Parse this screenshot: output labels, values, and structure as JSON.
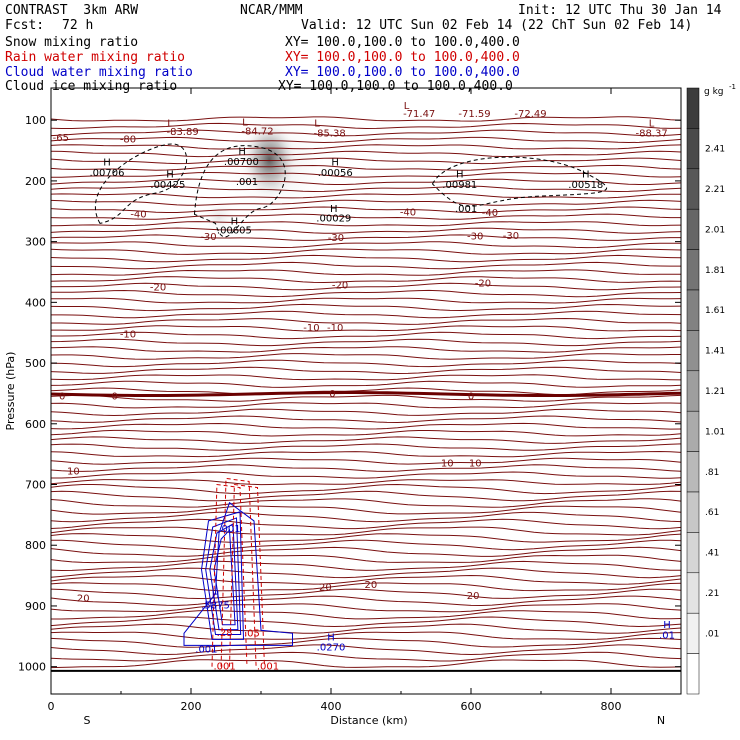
{
  "header": {
    "title": "CONTRAST  3km ARW",
    "org": "NCAR/MMM",
    "init": "Init: 12 UTC Thu 30 Jan 14",
    "fcst_label": "Fcst:",
    "fcst_value": "72 h",
    "valid": "Valid: 12 UTC Sun 02 Feb 14 (22 ChT Sun 02 Feb 14)"
  },
  "legend": [
    {
      "name": "Snow mixing ratio",
      "color": "#000000",
      "xy": "XY= 100.0,100.0 to 100.0,400.0"
    },
    {
      "name": "Rain water mixing ratio",
      "color": "#d00000",
      "xy": "XY= 100.0,100.0 to 100.0,400.0"
    },
    {
      "name": "Cloud water mixing ratio",
      "color": "#0000c8",
      "xy": "XY= 100.0,100.0 to 100.0,400.0"
    },
    {
      "name": "Cloud ice mixing ratio",
      "color": "#000000",
      "xy": "XY= 100.0,100.0 to 100.0,400.0"
    }
  ],
  "colors": {
    "temperature": "#7a1010",
    "zero_isotherm": "#6a0000",
    "rain": "#d00000",
    "cloud_water": "#0000c8",
    "snow": "#000000",
    "surface": "#000000"
  },
  "chart_data": {
    "type": "heatmap",
    "xlabel": "Distance (km)",
    "ylabel": "Pressure (hPa)",
    "xlim": [
      0,
      900
    ],
    "ylim": [
      1045,
      47
    ],
    "x_ticks": [
      "0",
      "200",
      "400",
      "600",
      "800"
    ],
    "y_ticks": [
      "100",
      "200",
      "300",
      "400",
      "500",
      "600",
      "700",
      "800",
      "900",
      "1000"
    ],
    "x_end_labels": {
      "left": "S",
      "right": "N"
    },
    "colorbar": {
      "unit": "g kg",
      "unit_exp": "-1",
      "ticks": [
        "2.41",
        "2.21",
        "2.01",
        "1.81",
        "1.61",
        "1.41",
        "1.21",
        "1.01",
        ".81",
        ".61",
        ".41",
        ".21",
        ".01"
      ]
    },
    "surface_pressure": 1007,
    "temperature_labels": [
      {
        "text": "-83.89",
        "x": 188,
        "p": 118
      },
      {
        "text": "-84.72",
        "x": 295,
        "p": 117
      },
      {
        "text": "-85.38",
        "x": 398,
        "p": 120
      },
      {
        "text": "-71.47",
        "x": 526,
        "p": 88
      },
      {
        "text": "-71.59",
        "x": 605,
        "p": 88
      },
      {
        "text": "-72.49",
        "x": 685,
        "p": 88
      },
      {
        "text": "-88.37",
        "x": 858,
        "p": 120
      },
      {
        "text": "-65",
        "x": 14,
        "p": 128
      },
      {
        "text": "-80",
        "x": 110,
        "p": 130
      },
      {
        "text": "-40",
        "x": 125,
        "p": 254
      },
      {
        "text": "-40",
        "x": 510,
        "p": 250
      },
      {
        "text": "-40",
        "x": 627,
        "p": 251
      },
      {
        "text": "-30",
        "x": 225,
        "p": 291
      },
      {
        "text": "-30",
        "x": 407,
        "p": 292
      },
      {
        "text": "-30",
        "x": 606,
        "p": 290
      },
      {
        "text": "-30",
        "x": 657,
        "p": 289
      },
      {
        "text": "-20",
        "x": 153,
        "p": 374
      },
      {
        "text": "-20",
        "x": 413,
        "p": 371
      },
      {
        "text": "-20",
        "x": 617,
        "p": 367
      },
      {
        "text": "-10",
        "x": 110,
        "p": 451
      },
      {
        "text": "-10",
        "x": 372,
        "p": 441
      },
      {
        "text": "-10",
        "x": 406,
        "p": 441
      },
      {
        "text": "0",
        "x": 16,
        "p": 553
      },
      {
        "text": "0",
        "x": 91,
        "p": 553
      },
      {
        "text": "0",
        "x": 402,
        "p": 549
      },
      {
        "text": "0",
        "x": 600,
        "p": 553
      },
      {
        "text": "10",
        "x": 32,
        "p": 677
      },
      {
        "text": "10",
        "x": 566,
        "p": 664
      },
      {
        "text": "10",
        "x": 606,
        "p": 664
      },
      {
        "text": "20",
        "x": 46,
        "p": 886
      },
      {
        "text": "20",
        "x": 392,
        "p": 868
      },
      {
        "text": "20",
        "x": 457,
        "p": 864
      },
      {
        "text": "20",
        "x": 603,
        "p": 882
      }
    ],
    "maxima": [
      {
        "text": ".00706",
        "x": 80,
        "p": 185,
        "color": "#000000"
      },
      {
        "text": ".00425",
        "x": 167,
        "p": 205,
        "color": "#000000"
      },
      {
        "text": ".00700",
        "x": 272,
        "p": 167,
        "color": "#000000"
      },
      {
        "text": ".00056",
        "x": 406,
        "p": 185,
        "color": "#000000"
      },
      {
        "text": ".00981",
        "x": 584,
        "p": 205,
        "color": "#000000"
      },
      {
        "text": ".00518",
        "x": 764,
        "p": 205,
        "color": "#000000"
      },
      {
        "text": ".00029",
        "x": 404,
        "p": 260,
        "color": "#000000"
      },
      {
        "text": ".00605",
        "x": 262,
        "p": 280,
        "color": "#000000"
      },
      {
        "text": ".001",
        "x": 280,
        "p": 200,
        "color": "#000000"
      },
      {
        "text": ".001",
        "x": 593,
        "p": 245,
        "color": "#000000"
      },
      {
        "text": ".001",
        "x": 255,
        "p": 772,
        "color": "#0000c8"
      },
      {
        "text": ".5875",
        "x": 235,
        "p": 898,
        "color": "#0000c8"
      },
      {
        "text": ".0270",
        "x": 400,
        "p": 967,
        "color": "#0000c8"
      },
      {
        "text": ".001",
        "x": 222,
        "p": 970,
        "color": "#0000c8"
      },
      {
        "text": ".01",
        "x": 880,
        "p": 947,
        "color": "#0000c8"
      },
      {
        "text": ".001",
        "x": 248,
        "p": 998,
        "color": "#d00000"
      },
      {
        "text": ".001",
        "x": 310,
        "p": 998,
        "color": "#d00000"
      },
      {
        "text": ".28",
        "x": 248,
        "p": 943,
        "color": "#d00000"
      },
      {
        "text": ".05",
        "x": 287,
        "p": 944,
        "color": "#d00000"
      }
    ]
  }
}
